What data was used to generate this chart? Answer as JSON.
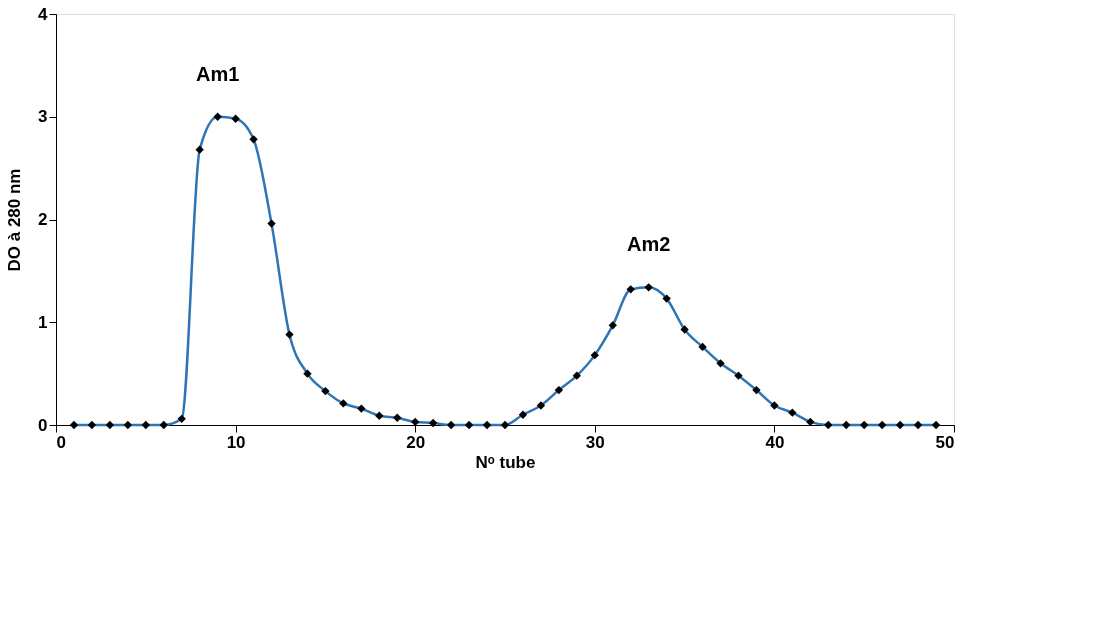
{
  "chart_data": {
    "type": "line",
    "xlabel": "Nᵒ tube",
    "ylabel": "DO à 280 nm",
    "x": [
      1,
      2,
      3,
      4,
      5,
      6,
      7,
      8,
      9,
      10,
      11,
      12,
      13,
      14,
      15,
      16,
      17,
      18,
      19,
      20,
      21,
      22,
      23,
      24,
      25,
      26,
      27,
      28,
      29,
      30,
      31,
      32,
      33,
      34,
      35,
      36,
      37,
      38,
      39,
      40,
      41,
      42,
      43,
      44,
      45,
      46,
      47,
      48,
      49
    ],
    "series": [
      {
        "color": "#2e75b6",
        "values": [
          0,
          0,
          0,
          0,
          0,
          0,
          0.06,
          2.68,
          3.0,
          2.98,
          2.78,
          1.96,
          0.88,
          0.5,
          0.33,
          0.21,
          0.16,
          0.09,
          0.07,
          0.03,
          0.02,
          0,
          0,
          0,
          0,
          0.1,
          0.19,
          0.34,
          0.48,
          0.68,
          0.97,
          1.32,
          1.34,
          1.23,
          0.93,
          0.76,
          0.6,
          0.48,
          0.34,
          0.19,
          0.12,
          0.03,
          0,
          0,
          0,
          0,
          0,
          0,
          0
        ]
      }
    ],
    "xlim": [
      0,
      50
    ],
    "xticks": [
      0,
      10,
      20,
      30,
      40,
      50
    ],
    "ylim": [
      0,
      4
    ],
    "yticks": [
      0,
      1,
      2,
      3,
      4
    ],
    "grid": false,
    "marker": "diamond",
    "line_style": "solid",
    "annotations": [
      "Am1",
      "Am2"
    ]
  }
}
